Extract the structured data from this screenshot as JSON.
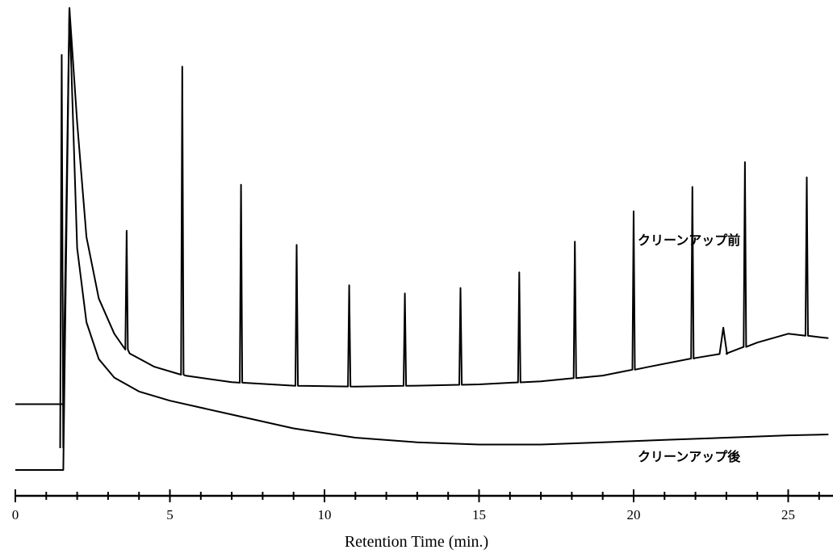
{
  "chart_data": {
    "type": "line",
    "title": "",
    "xlabel": "Retention Time (min.)",
    "ylabel": "",
    "xlim": [
      0,
      26.3
    ],
    "x_ticks": [
      0,
      5,
      10,
      15,
      20,
      25
    ],
    "grid": false,
    "legend": "inline labels at right",
    "series": [
      {
        "name": "クリーンアップ前",
        "baseline": [
          [
            0,
            0.1
          ],
          [
            1.4,
            0.1
          ],
          [
            1.55,
            0.1
          ],
          [
            1.75,
            1.0
          ],
          [
            2.0,
            0.74
          ],
          [
            2.3,
            0.48
          ],
          [
            2.7,
            0.34
          ],
          [
            3.2,
            0.26
          ],
          [
            3.7,
            0.215
          ],
          [
            4.5,
            0.185
          ],
          [
            5.5,
            0.165
          ],
          [
            7,
            0.15
          ],
          [
            9,
            0.142
          ],
          [
            11,
            0.14
          ],
          [
            13,
            0.142
          ],
          [
            15,
            0.145
          ],
          [
            17,
            0.152
          ],
          [
            19,
            0.165
          ],
          [
            20.5,
            0.185
          ],
          [
            22,
            0.205
          ],
          [
            23,
            0.215
          ],
          [
            24,
            0.24
          ],
          [
            25,
            0.26
          ],
          [
            26.3,
            0.25
          ]
        ],
        "peaks": [
          {
            "x": 3.6,
            "height": 0.27
          },
          {
            "x": 5.4,
            "height": 0.7
          },
          {
            "x": 7.3,
            "height": 0.45
          },
          {
            "x": 9.1,
            "height": 0.32
          },
          {
            "x": 10.8,
            "height": 0.23
          },
          {
            "x": 12.6,
            "height": 0.21
          },
          {
            "x": 14.4,
            "height": 0.22
          },
          {
            "x": 16.3,
            "height": 0.25
          },
          {
            "x": 18.1,
            "height": 0.31
          },
          {
            "x": 20.0,
            "height": 0.36
          },
          {
            "x": 21.9,
            "height": 0.39
          },
          {
            "x": 22.9,
            "height": 0.06
          },
          {
            "x": 23.6,
            "height": 0.42
          },
          {
            "x": 25.6,
            "height": 0.36
          }
        ]
      },
      {
        "name": "クリーンアップ後",
        "baseline": [
          [
            0,
            0.0
          ],
          [
            1.4,
            0.0
          ],
          [
            1.55,
            0.0
          ],
          [
            1.75,
            1.0
          ],
          [
            2.0,
            0.48
          ],
          [
            2.3,
            0.32
          ],
          [
            2.7,
            0.24
          ],
          [
            3.2,
            0.2
          ],
          [
            4,
            0.17
          ],
          [
            5,
            0.15
          ],
          [
            7,
            0.12
          ],
          [
            9,
            0.09
          ],
          [
            11,
            0.07
          ],
          [
            13,
            0.06
          ],
          [
            15,
            0.055
          ],
          [
            17,
            0.055
          ],
          [
            19,
            0.06
          ],
          [
            21,
            0.065
          ],
          [
            23,
            0.07
          ],
          [
            25,
            0.075
          ],
          [
            26.3,
            0.077
          ]
        ],
        "peaks": []
      }
    ]
  }
}
